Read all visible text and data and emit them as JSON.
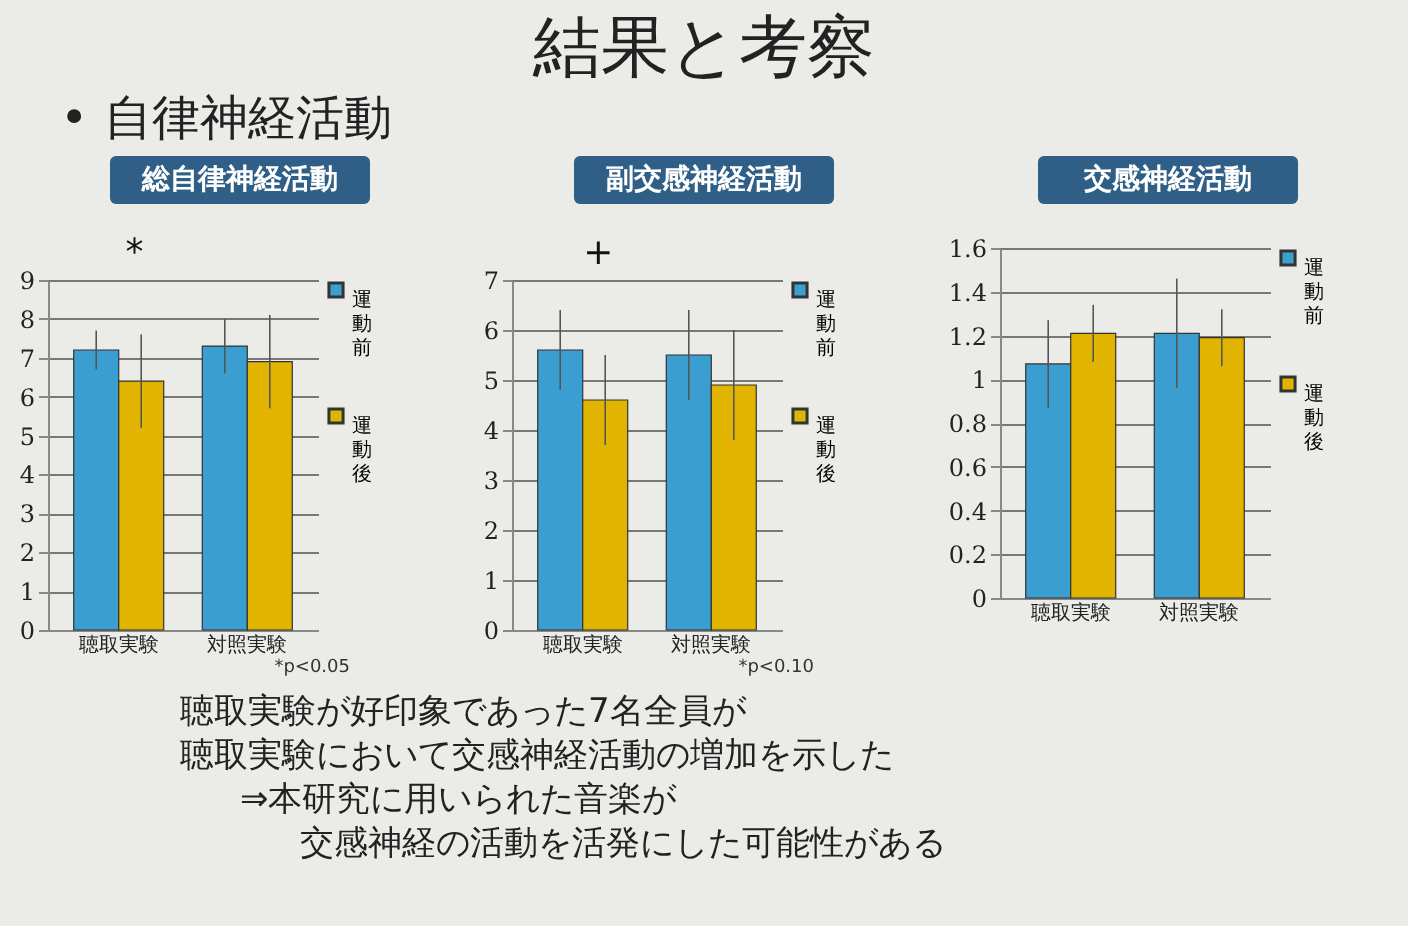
{
  "chart_data": [
    {
      "type": "other",
      "title": "結果と考察",
      "subtitle": "• 自律神経活動"
    },
    {
      "type": "bar",
      "title": "総自律神経活動",
      "categories": [
        "聴取実験",
        "対照実験"
      ],
      "series": [
        {
          "name": "運動前",
          "color": "#3a9fd0",
          "values": [
            7.2,
            7.3
          ],
          "errors": [
            0.5,
            0.7
          ]
        },
        {
          "name": "運動後",
          "color": "#e0b400",
          "values": [
            6.4,
            6.9
          ],
          "errors": [
            1.2,
            1.2
          ]
        }
      ],
      "ylim": [
        0,
        9
      ],
      "yticks": [
        0,
        1,
        2,
        3,
        4,
        5,
        6,
        7,
        8,
        9
      ],
      "grid": "y",
      "legend": "right",
      "annotations": [
        "*",
        "*p<0.05"
      ]
    },
    {
      "type": "bar",
      "title": "副交感神経活動",
      "categories": [
        "聴取実験",
        "対照実験"
      ],
      "series": [
        {
          "name": "運動前",
          "color": "#3a9fd0",
          "values": [
            5.6,
            5.5
          ],
          "errors": [
            0.8,
            0.9
          ]
        },
        {
          "name": "運動後",
          "color": "#e0b400",
          "values": [
            4.6,
            4.9
          ],
          "errors": [
            0.9,
            1.1
          ]
        }
      ],
      "ylim": [
        0,
        7
      ],
      "yticks": [
        0,
        1,
        2,
        3,
        4,
        5,
        6,
        7
      ],
      "grid": "y",
      "legend": "right",
      "annotations": [
        "+",
        "*p<0.10"
      ]
    },
    {
      "type": "bar",
      "title": "交感神経活動",
      "categories": [
        "聴取実験",
        "対照実験"
      ],
      "series": [
        {
          "name": "運動前",
          "color": "#3a9fd0",
          "values": [
            1.07,
            1.21
          ],
          "errors": [
            0.2,
            0.25
          ]
        },
        {
          "name": "運動後",
          "color": "#e0b400",
          "values": [
            1.21,
            1.19
          ],
          "errors": [
            0.13,
            0.13
          ]
        }
      ],
      "ylim": [
        0,
        1.6
      ],
      "yticks": [
        0,
        0.2,
        0.4,
        0.6,
        0.8,
        1,
        1.2,
        1.4,
        1.6
      ],
      "grid": "y",
      "legend": "right"
    },
    {
      "type": "other",
      "annotations": [
        "聴取実験が好印象であった7名全員が",
        "聴取実験において交感神経活動の増加を示した",
        "⇒本研究に用いられた音楽が",
        "交感神経の活動を活発にした可能性がある"
      ]
    }
  ]
}
